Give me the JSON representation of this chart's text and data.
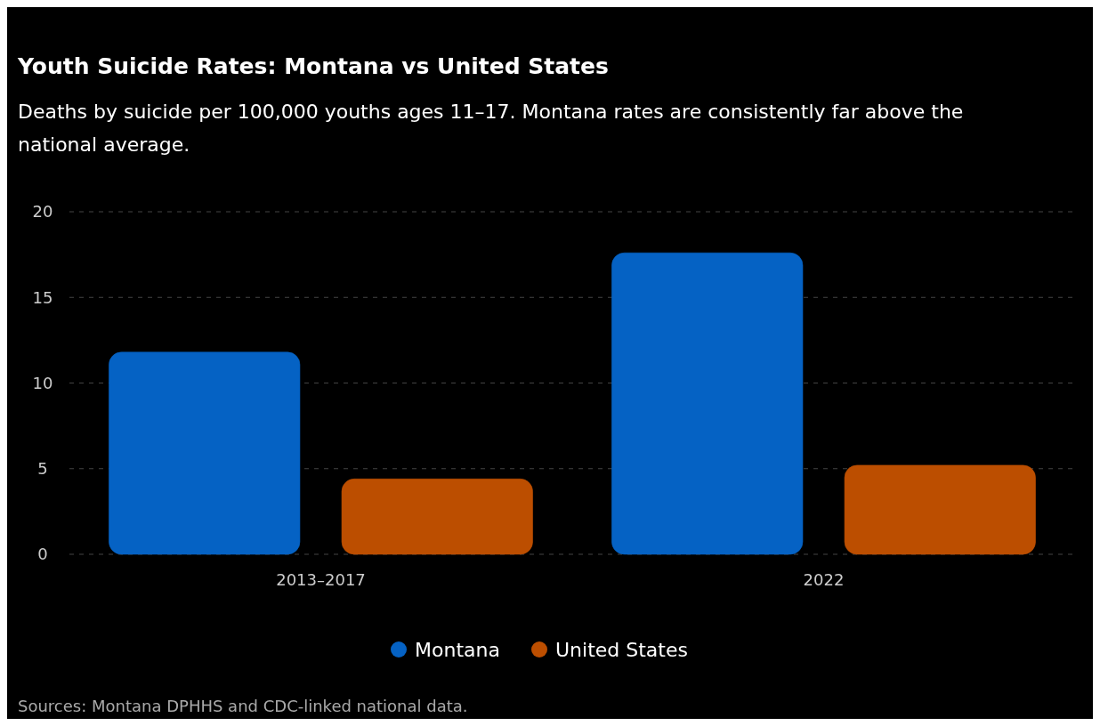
{
  "chart_data": {
    "type": "bar",
    "title": "Youth Suicide Rates: Montana vs United States",
    "subtitle": "Deaths by suicide per 100,000 youths ages 11–17. Montana rates are consistently far above the national average.",
    "categories": [
      "2013–2017",
      "2022"
    ],
    "series": [
      {
        "name": "Montana",
        "color": "#0562c4",
        "values": [
          11.8,
          17.6
        ]
      },
      {
        "name": "United States",
        "color": "#bc4e00",
        "values": [
          4.4,
          5.2
        ]
      }
    ],
    "ylim": [
      0,
      20
    ],
    "yticks": [
      0,
      5,
      10,
      15,
      20
    ],
    "grid": "y",
    "legend": "bottom",
    "annotations": [
      "Sources: Montana DPHHS and CDC-linked national data."
    ]
  }
}
